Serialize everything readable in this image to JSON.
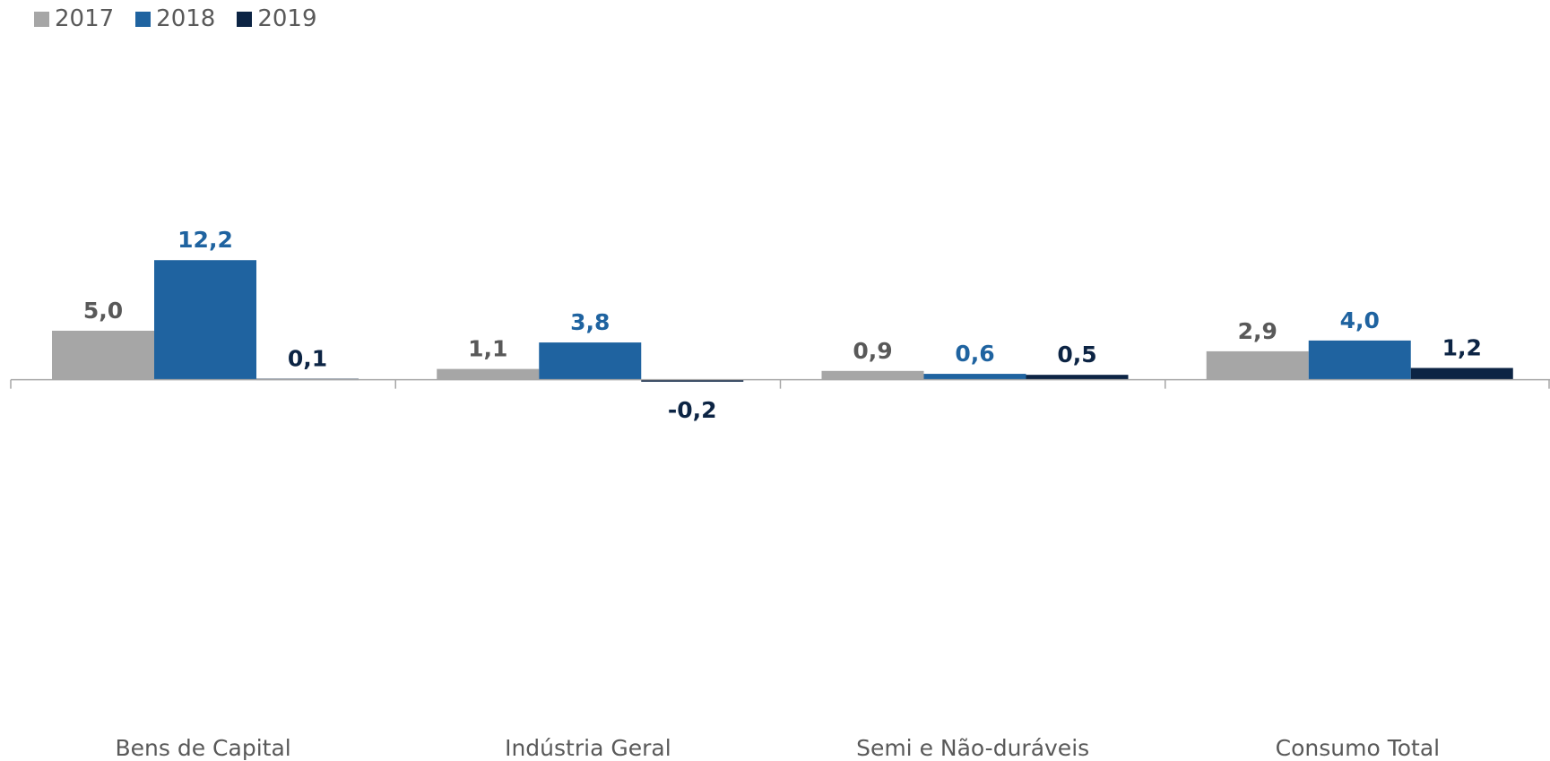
{
  "chart_data": {
    "type": "bar",
    "categories": [
      "Bens de Capital",
      "Indústria Geral",
      "Semi e Não-duráveis",
      "Consumo Total"
    ],
    "series": [
      {
        "name": "2017",
        "values": [
          5.0,
          1.1,
          0.9,
          2.9
        ],
        "labels": [
          "5,0",
          "1,1",
          "0,9",
          "2,9"
        ],
        "color": "#a6a6a6",
        "label_color": "#595959"
      },
      {
        "name": "2018",
        "values": [
          12.2,
          3.8,
          0.6,
          4.0
        ],
        "labels": [
          "12,2",
          "3,8",
          "0,6",
          "4,0"
        ],
        "color": "#1f63a0",
        "label_color": "#1f63a0"
      },
      {
        "name": "2019",
        "values": [
          0.1,
          -0.2,
          0.5,
          1.2
        ],
        "labels": [
          "0,1",
          "-0,2",
          "0,5",
          "1,2"
        ],
        "color": "#0c2444",
        "label_color": "#0c2444"
      }
    ],
    "ylim": [
      -33.5,
      33.8
    ],
    "legend_position": "top-left",
    "grid": false,
    "axis_color": "#a6a6a6",
    "title": "",
    "xlabel": "",
    "ylabel": ""
  }
}
